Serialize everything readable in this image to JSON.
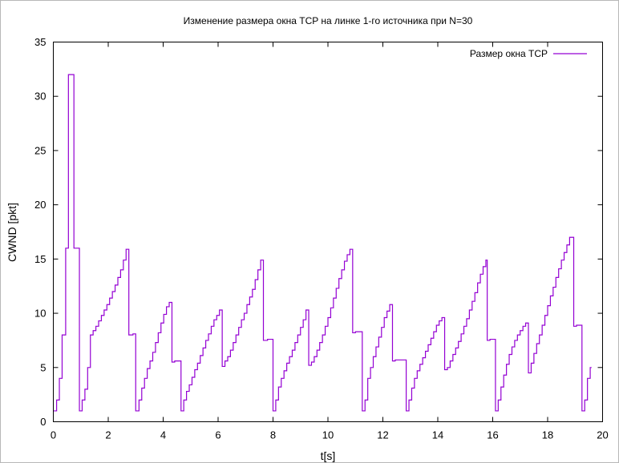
{
  "chart_data": {
    "type": "line",
    "title": "Изменение размера окна TCP на линке 1-го источника при N=30",
    "xlabel": "t[s]",
    "ylabel": "CWND [pkt]",
    "xlim": [
      0,
      20
    ],
    "ylim": [
      0,
      35
    ],
    "x_ticks": [
      0,
      2,
      4,
      6,
      8,
      10,
      12,
      14,
      16,
      18,
      20
    ],
    "y_ticks": [
      0,
      5,
      10,
      15,
      20,
      25,
      30,
      35
    ],
    "grid": false,
    "legend_position": "top-right",
    "series": [
      {
        "name": "Размер окна TCP",
        "color": "#9400d3",
        "step": true,
        "points": [
          [
            0.0,
            1
          ],
          [
            0.12,
            2
          ],
          [
            0.22,
            4
          ],
          [
            0.32,
            8
          ],
          [
            0.45,
            16
          ],
          [
            0.55,
            32
          ],
          [
            0.75,
            16
          ],
          [
            0.95,
            1
          ],
          [
            1.05,
            2
          ],
          [
            1.15,
            3
          ],
          [
            1.25,
            5
          ],
          [
            1.35,
            8
          ],
          [
            1.45,
            8.4
          ],
          [
            1.55,
            8.8
          ],
          [
            1.65,
            9.3
          ],
          [
            1.75,
            9.8
          ],
          [
            1.85,
            10.3
          ],
          [
            1.95,
            10.8
          ],
          [
            2.05,
            11.4
          ],
          [
            2.15,
            12.0
          ],
          [
            2.25,
            12.6
          ],
          [
            2.35,
            13.3
          ],
          [
            2.45,
            14.0
          ],
          [
            2.55,
            14.9
          ],
          [
            2.65,
            15.9
          ],
          [
            2.75,
            8.0
          ],
          [
            2.9,
            8.1
          ],
          [
            3.0,
            1
          ],
          [
            3.12,
            2
          ],
          [
            3.22,
            3.1
          ],
          [
            3.32,
            4.0
          ],
          [
            3.42,
            4.9
          ],
          [
            3.52,
            5.6
          ],
          [
            3.62,
            6.4
          ],
          [
            3.72,
            7.3
          ],
          [
            3.82,
            8.2
          ],
          [
            3.92,
            9.1
          ],
          [
            4.02,
            9.9
          ],
          [
            4.12,
            10.6
          ],
          [
            4.22,
            11.0
          ],
          [
            4.32,
            5.5
          ],
          [
            4.42,
            5.6
          ],
          [
            4.52,
            5.6
          ],
          [
            4.65,
            1
          ],
          [
            4.75,
            2
          ],
          [
            4.85,
            2.8
          ],
          [
            4.95,
            3.4
          ],
          [
            5.05,
            4.1
          ],
          [
            5.15,
            4.8
          ],
          [
            5.25,
            5.4
          ],
          [
            5.35,
            6.1
          ],
          [
            5.45,
            6.8
          ],
          [
            5.55,
            7.5
          ],
          [
            5.65,
            8.1
          ],
          [
            5.75,
            8.8
          ],
          [
            5.85,
            9.4
          ],
          [
            5.95,
            9.8
          ],
          [
            6.05,
            10.3
          ],
          [
            6.15,
            5.1
          ],
          [
            6.25,
            5.6
          ],
          [
            6.35,
            6.0
          ],
          [
            6.45,
            6.6
          ],
          [
            6.55,
            7.3
          ],
          [
            6.65,
            8.0
          ],
          [
            6.75,
            8.7
          ],
          [
            6.85,
            9.4
          ],
          [
            6.95,
            10.0
          ],
          [
            7.05,
            10.8
          ],
          [
            7.15,
            11.5
          ],
          [
            7.25,
            12.2
          ],
          [
            7.35,
            13.1
          ],
          [
            7.45,
            14.0
          ],
          [
            7.55,
            14.9
          ],
          [
            7.65,
            7.5
          ],
          [
            7.8,
            7.6
          ],
          [
            8.0,
            1
          ],
          [
            8.1,
            2
          ],
          [
            8.2,
            3.2
          ],
          [
            8.3,
            4.0
          ],
          [
            8.4,
            4.7
          ],
          [
            8.5,
            5.4
          ],
          [
            8.6,
            6.0
          ],
          [
            8.7,
            6.6
          ],
          [
            8.8,
            7.3
          ],
          [
            8.9,
            8.0
          ],
          [
            9.0,
            8.7
          ],
          [
            9.1,
            9.4
          ],
          [
            9.2,
            10.3
          ],
          [
            9.3,
            5.2
          ],
          [
            9.4,
            5.5
          ],
          [
            9.5,
            6.0
          ],
          [
            9.6,
            6.6
          ],
          [
            9.7,
            7.3
          ],
          [
            9.8,
            8.0
          ],
          [
            9.9,
            8.8
          ],
          [
            10.0,
            9.6
          ],
          [
            10.1,
            10.5
          ],
          [
            10.2,
            11.4
          ],
          [
            10.3,
            12.3
          ],
          [
            10.4,
            13.2
          ],
          [
            10.5,
            14.0
          ],
          [
            10.6,
            14.8
          ],
          [
            10.7,
            15.4
          ],
          [
            10.8,
            15.9
          ],
          [
            10.9,
            8.2
          ],
          [
            11.0,
            8.3
          ],
          [
            11.1,
            8.3
          ],
          [
            11.25,
            1
          ],
          [
            11.35,
            2
          ],
          [
            11.45,
            4.0
          ],
          [
            11.55,
            5.0
          ],
          [
            11.65,
            6.0
          ],
          [
            11.75,
            6.9
          ],
          [
            11.85,
            7.8
          ],
          [
            11.95,
            8.7
          ],
          [
            12.05,
            9.6
          ],
          [
            12.15,
            10.2
          ],
          [
            12.25,
            10.8
          ],
          [
            12.35,
            5.6
          ],
          [
            12.45,
            5.7
          ],
          [
            12.55,
            5.7
          ],
          [
            12.6,
            5.7
          ],
          [
            12.85,
            1
          ],
          [
            12.95,
            2
          ],
          [
            13.05,
            3.1
          ],
          [
            13.15,
            4.0
          ],
          [
            13.25,
            4.7
          ],
          [
            13.35,
            5.3
          ],
          [
            13.45,
            5.9
          ],
          [
            13.55,
            6.5
          ],
          [
            13.65,
            7.1
          ],
          [
            13.75,
            7.7
          ],
          [
            13.85,
            8.3
          ],
          [
            13.95,
            8.9
          ],
          [
            14.05,
            9.3
          ],
          [
            14.15,
            9.6
          ],
          [
            14.25,
            4.8
          ],
          [
            14.35,
            5.0
          ],
          [
            14.45,
            5.6
          ],
          [
            14.55,
            6.2
          ],
          [
            14.65,
            6.8
          ],
          [
            14.75,
            7.4
          ],
          [
            14.85,
            8.1
          ],
          [
            14.95,
            8.8
          ],
          [
            15.05,
            9.5
          ],
          [
            15.15,
            10.3
          ],
          [
            15.25,
            11.1
          ],
          [
            15.35,
            11.9
          ],
          [
            15.45,
            12.8
          ],
          [
            15.55,
            13.6
          ],
          [
            15.65,
            14.3
          ],
          [
            15.75,
            14.9
          ],
          [
            15.8,
            7.5
          ],
          [
            15.9,
            7.6
          ],
          [
            16.0,
            7.6
          ],
          [
            16.1,
            1
          ],
          [
            16.2,
            2
          ],
          [
            16.3,
            3.2
          ],
          [
            16.4,
            4.3
          ],
          [
            16.5,
            5.3
          ],
          [
            16.6,
            6.2
          ],
          [
            16.7,
            6.9
          ],
          [
            16.8,
            7.5
          ],
          [
            16.9,
            8.0
          ],
          [
            17.0,
            8.4
          ],
          [
            17.1,
            8.8
          ],
          [
            17.2,
            9.1
          ],
          [
            17.3,
            4.5
          ],
          [
            17.4,
            5.4
          ],
          [
            17.5,
            6.3
          ],
          [
            17.6,
            7.2
          ],
          [
            17.7,
            8.0
          ],
          [
            17.8,
            8.9
          ],
          [
            17.9,
            9.8
          ],
          [
            18.0,
            10.7
          ],
          [
            18.1,
            11.6
          ],
          [
            18.2,
            12.4
          ],
          [
            18.3,
            13.3
          ],
          [
            18.4,
            14.1
          ],
          [
            18.5,
            14.9
          ],
          [
            18.6,
            15.6
          ],
          [
            18.7,
            16.3
          ],
          [
            18.8,
            17.0
          ],
          [
            18.95,
            8.8
          ],
          [
            19.05,
            8.9
          ],
          [
            19.15,
            8.9
          ],
          [
            19.25,
            1
          ],
          [
            19.35,
            2
          ],
          [
            19.45,
            4.0
          ],
          [
            19.55,
            5.0
          ],
          [
            19.6,
            5.0
          ]
        ]
      }
    ]
  }
}
